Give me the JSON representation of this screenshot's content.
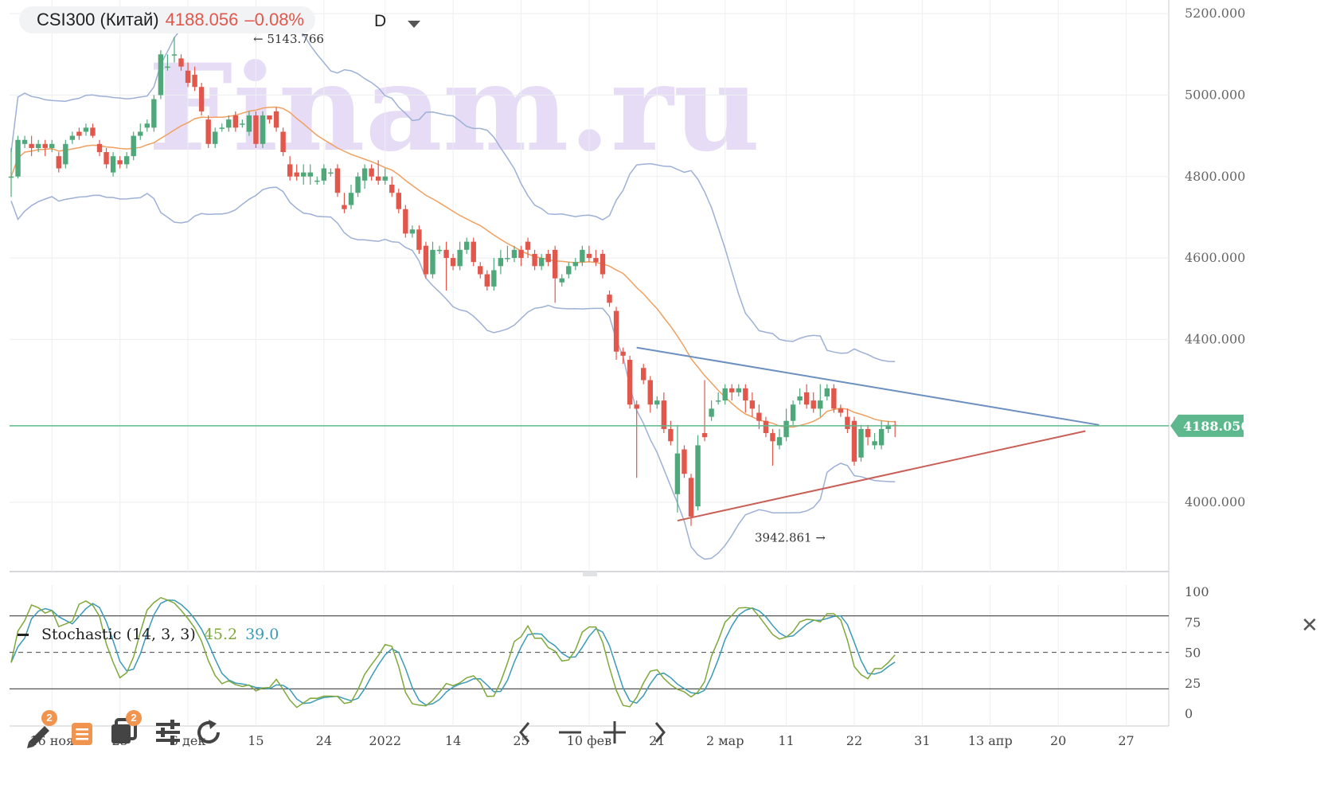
{
  "header": {
    "symbol": "CSI300 (Китай)",
    "price": "4188.056",
    "change": "–0.08%",
    "timeframe": "D"
  },
  "watermark": "Finam.ru",
  "colors": {
    "up": "#4fa87a",
    "down": "#e2574c",
    "ma": "#f0a060",
    "bollinger": "#9db0d6",
    "price_line": "#5db88d",
    "upper_trendline": "#6b8fbf",
    "lower_trendline": "#c95f57",
    "stoch_k": "#7fa83a",
    "stoch_d": "#3a9ab8"
  },
  "annotations": {
    "high": "5143.766",
    "low": "3942.861",
    "last_price_tag": "4188.056"
  },
  "indicator": {
    "name": "Stochastic (14, 3, 3)",
    "k_value": "45.2",
    "d_value": "39.0",
    "ticks": [
      "100",
      "75",
      "50",
      "25",
      "0"
    ]
  },
  "toolbar": {
    "draw_badge": "2",
    "layers_badge": "2"
  },
  "chart_data": {
    "type": "candlestick",
    "title": "CSI300 (Китай)",
    "y_ticks": [
      "5200.000",
      "5000.000",
      "4800.000",
      "4600.000",
      "4400.000",
      "4000.000"
    ],
    "ylim": [
      3830,
      5210
    ],
    "x_ticks": [
      "16 ноя",
      "25",
      "6 дек",
      "15",
      "24",
      "2022",
      "14",
      "25",
      "10 фев",
      "21",
      "2 мар",
      "11",
      "22",
      "31",
      "13 апр",
      "20",
      "27"
    ],
    "candles": [
      [
        4800,
        4800,
        4750,
        4870
      ],
      [
        4800,
        4890,
        4795,
        4900
      ],
      [
        4880,
        4890,
        4870,
        4900
      ],
      [
        4880,
        4870,
        4850,
        4900
      ],
      [
        4870,
        4880,
        4860,
        4890
      ],
      [
        4880,
        4870,
        4850,
        4890
      ],
      [
        4870,
        4880,
        4860,
        4890
      ],
      [
        4850,
        4820,
        4810,
        4860
      ],
      [
        4830,
        4880,
        4820,
        4890
      ],
      [
        4890,
        4900,
        4880,
        4910
      ],
      [
        4910,
        4900,
        4890,
        4920
      ],
      [
        4910,
        4920,
        4900,
        4930
      ],
      [
        4920,
        4900,
        4895,
        4930
      ],
      [
        4880,
        4860,
        4850,
        4890
      ],
      [
        4860,
        4830,
        4820,
        4870
      ],
      [
        4810,
        4850,
        4800,
        4860
      ],
      [
        4840,
        4830,
        4820,
        4850
      ],
      [
        4830,
        4850,
        4820,
        4860
      ],
      [
        4850,
        4900,
        4840,
        4910
      ],
      [
        4900,
        4910,
        4890,
        4930
      ],
      [
        4920,
        4930,
        4910,
        4940
      ],
      [
        4920,
        4990,
        4910,
        5000
      ],
      [
        5000,
        5100,
        4990,
        5110
      ],
      [
        5070,
        5070,
        5060,
        5100
      ],
      [
        5100,
        5100,
        5080,
        5143
      ],
      [
        5090,
        5070,
        5060,
        5100
      ],
      [
        5060,
        5030,
        5020,
        5080
      ],
      [
        5050,
        5020,
        5010,
        5070
      ],
      [
        5020,
        4960,
        4950,
        5030
      ],
      [
        4940,
        4880,
        4870,
        4950
      ],
      [
        4880,
        4910,
        4870,
        4920
      ],
      [
        4920,
        4920,
        4910,
        4930
      ],
      [
        4920,
        4940,
        4910,
        4950
      ],
      [
        4950,
        4920,
        4910,
        4960
      ],
      [
        4930,
        4930,
        4920,
        4940
      ],
      [
        4910,
        4950,
        4900,
        4960
      ],
      [
        4950,
        4880,
        4870,
        4960
      ],
      [
        4880,
        4950,
        4870,
        4960
      ],
      [
        4950,
        4940,
        4930,
        4950
      ],
      [
        4960,
        4920,
        4910,
        4970
      ],
      [
        4910,
        4860,
        4850,
        4920
      ],
      [
        4830,
        4800,
        4790,
        4850
      ],
      [
        4810,
        4800,
        4790,
        4830
      ],
      [
        4800,
        4810,
        4780,
        4830
      ],
      [
        4800,
        4810,
        4780,
        4830
      ],
      [
        4790,
        4790,
        4780,
        4800
      ],
      [
        4790,
        4820,
        4780,
        4830
      ],
      [
        4810,
        4810,
        4800,
        4820
      ],
      [
        4820,
        4760,
        4750,
        4830
      ],
      [
        4730,
        4720,
        4710,
        4760
      ],
      [
        4730,
        4760,
        4720,
        4780
      ],
      [
        4760,
        4800,
        4750,
        4810
      ],
      [
        4790,
        4820,
        4770,
        4830
      ],
      [
        4820,
        4800,
        4790,
        4830
      ],
      [
        4800,
        4790,
        4780,
        4840
      ],
      [
        4790,
        4800,
        4780,
        4820
      ],
      [
        4780,
        4760,
        4750,
        4800
      ],
      [
        4760,
        4720,
        4710,
        4770
      ],
      [
        4720,
        4660,
        4650,
        4730
      ],
      [
        4660,
        4670,
        4650,
        4680
      ],
      [
        4670,
        4620,
        4610,
        4680
      ],
      [
        4630,
        4560,
        4550,
        4640
      ],
      [
        4560,
        4620,
        4550,
        4640
      ],
      [
        4620,
        4620,
        4610,
        4630
      ],
      [
        4620,
        4600,
        4520,
        4640
      ],
      [
        4600,
        4580,
        4570,
        4610
      ],
      [
        4580,
        4620,
        4570,
        4640
      ],
      [
        4620,
        4640,
        4610,
        4650
      ],
      [
        4640,
        4590,
        4580,
        4650
      ],
      [
        4580,
        4560,
        4550,
        4590
      ],
      [
        4560,
        4530,
        4520,
        4570
      ],
      [
        4530,
        4570,
        4520,
        4600
      ],
      [
        4580,
        4600,
        4560,
        4620
      ],
      [
        4600,
        4600,
        4590,
        4630
      ],
      [
        4600,
        4620,
        4590,
        4630
      ],
      [
        4620,
        4600,
        4580,
        4630
      ],
      [
        4640,
        4620,
        4600,
        4650
      ],
      [
        4610,
        4580,
        4570,
        4620
      ],
      [
        4580,
        4600,
        4570,
        4610
      ],
      [
        4610,
        4590,
        4580,
        4620
      ],
      [
        4620,
        4550,
        4490,
        4630
      ],
      [
        4540,
        4550,
        4530,
        4560
      ],
      [
        4560,
        4580,
        4550,
        4590
      ],
      [
        4580,
        4590,
        4570,
        4600
      ],
      [
        4590,
        4620,
        4580,
        4630
      ],
      [
        4610,
        4600,
        4590,
        4630
      ],
      [
        4600,
        4590,
        4580,
        4620
      ],
      [
        4610,
        4560,
        4550,
        4620
      ],
      [
        4510,
        4490,
        4480,
        4520
      ],
      [
        4470,
        4370,
        4350,
        4480
      ],
      [
        4370,
        4360,
        4340,
        4380
      ],
      [
        4350,
        4240,
        4230,
        4360
      ],
      [
        4240,
        4230,
        4060,
        4250
      ],
      [
        4330,
        4300,
        4290,
        4340
      ],
      [
        4300,
        4240,
        4220,
        4310
      ],
      [
        4240,
        4250,
        4230,
        4260
      ],
      [
        4250,
        4180,
        4170,
        4270
      ],
      [
        4180,
        4150,
        4140,
        4200
      ],
      [
        4020,
        4120,
        3975,
        4190
      ],
      [
        4130,
        4070,
        4060,
        4140
      ],
      [
        4060,
        3965,
        3942,
        4070
      ],
      [
        3990,
        4140,
        3980,
        4165
      ],
      [
        4170,
        4160,
        4150,
        4300
      ],
      [
        4210,
        4230,
        4200,
        4250
      ],
      [
        4250,
        4250,
        4240,
        4270
      ],
      [
        4250,
        4280,
        4240,
        4290
      ],
      [
        4280,
        4270,
        4250,
        4290
      ],
      [
        4270,
        4280,
        4260,
        4290
      ],
      [
        4280,
        4250,
        4220,
        4290
      ],
      [
        4250,
        4230,
        4210,
        4270
      ],
      [
        4220,
        4200,
        4180,
        4240
      ],
      [
        4200,
        4170,
        4160,
        4210
      ],
      [
        4170,
        4150,
        4090,
        4180
      ],
      [
        4140,
        4160,
        4130,
        4180
      ],
      [
        4160,
        4200,
        4150,
        4230
      ],
      [
        4200,
        4240,
        4190,
        4250
      ],
      [
        4250,
        4260,
        4240,
        4280
      ],
      [
        4270,
        4240,
        4230,
        4290
      ],
      [
        4250,
        4230,
        4220,
        4270
      ],
      [
        4230,
        4250,
        4210,
        4290
      ],
      [
        4260,
        4280,
        4250,
        4290
      ],
      [
        4280,
        4230,
        4220,
        4290
      ],
      [
        4230,
        4220,
        4210,
        4240
      ],
      [
        4210,
        4180,
        4170,
        4230
      ],
      [
        4200,
        4100,
        4090,
        4210
      ],
      [
        4110,
        4180,
        4100,
        4190
      ],
      [
        4180,
        4160,
        4140,
        4190
      ],
      [
        4140,
        4150,
        4130,
        4170
      ],
      [
        4140,
        4180,
        4130,
        4200
      ],
      [
        4180,
        4190,
        4170,
        4200
      ],
      [
        4190,
        4188,
        4160,
        4200
      ]
    ]
  }
}
